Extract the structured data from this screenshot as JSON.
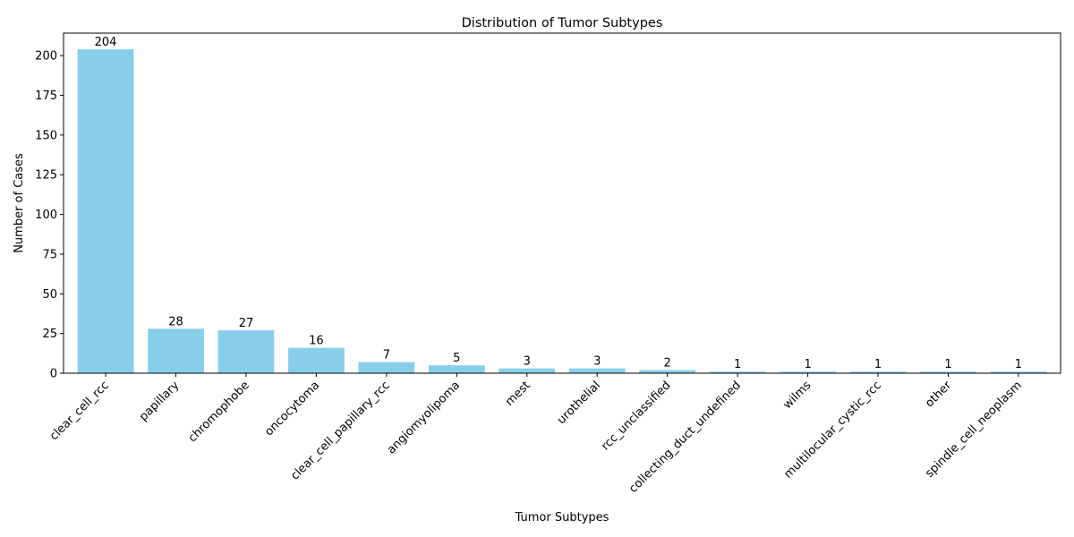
{
  "chart_data": {
    "type": "bar",
    "title": "Distribution of Tumor Subtypes",
    "xlabel": "Tumor Subtypes",
    "ylabel": "Number of Cases",
    "categories": [
      "clear_cell_rcc",
      "papillary",
      "chromophobe",
      "oncocytoma",
      "clear_cell_papillary_rcc",
      "angiomyolipoma",
      "mest",
      "urothelial",
      "rcc_unclassified",
      "collecting_duct_undefined",
      "wilms",
      "multilocular_cystic_rcc",
      "other",
      "spindle_cell_neoplasm"
    ],
    "values": [
      204,
      28,
      27,
      16,
      7,
      5,
      3,
      3,
      2,
      1,
      1,
      1,
      1,
      1
    ],
    "ylim": [
      0,
      214.2
    ],
    "yticks": [
      0,
      25,
      50,
      75,
      100,
      125,
      150,
      175,
      200
    ],
    "bar_color": "#87ceeb",
    "grid": false,
    "show_value_labels": true
  }
}
